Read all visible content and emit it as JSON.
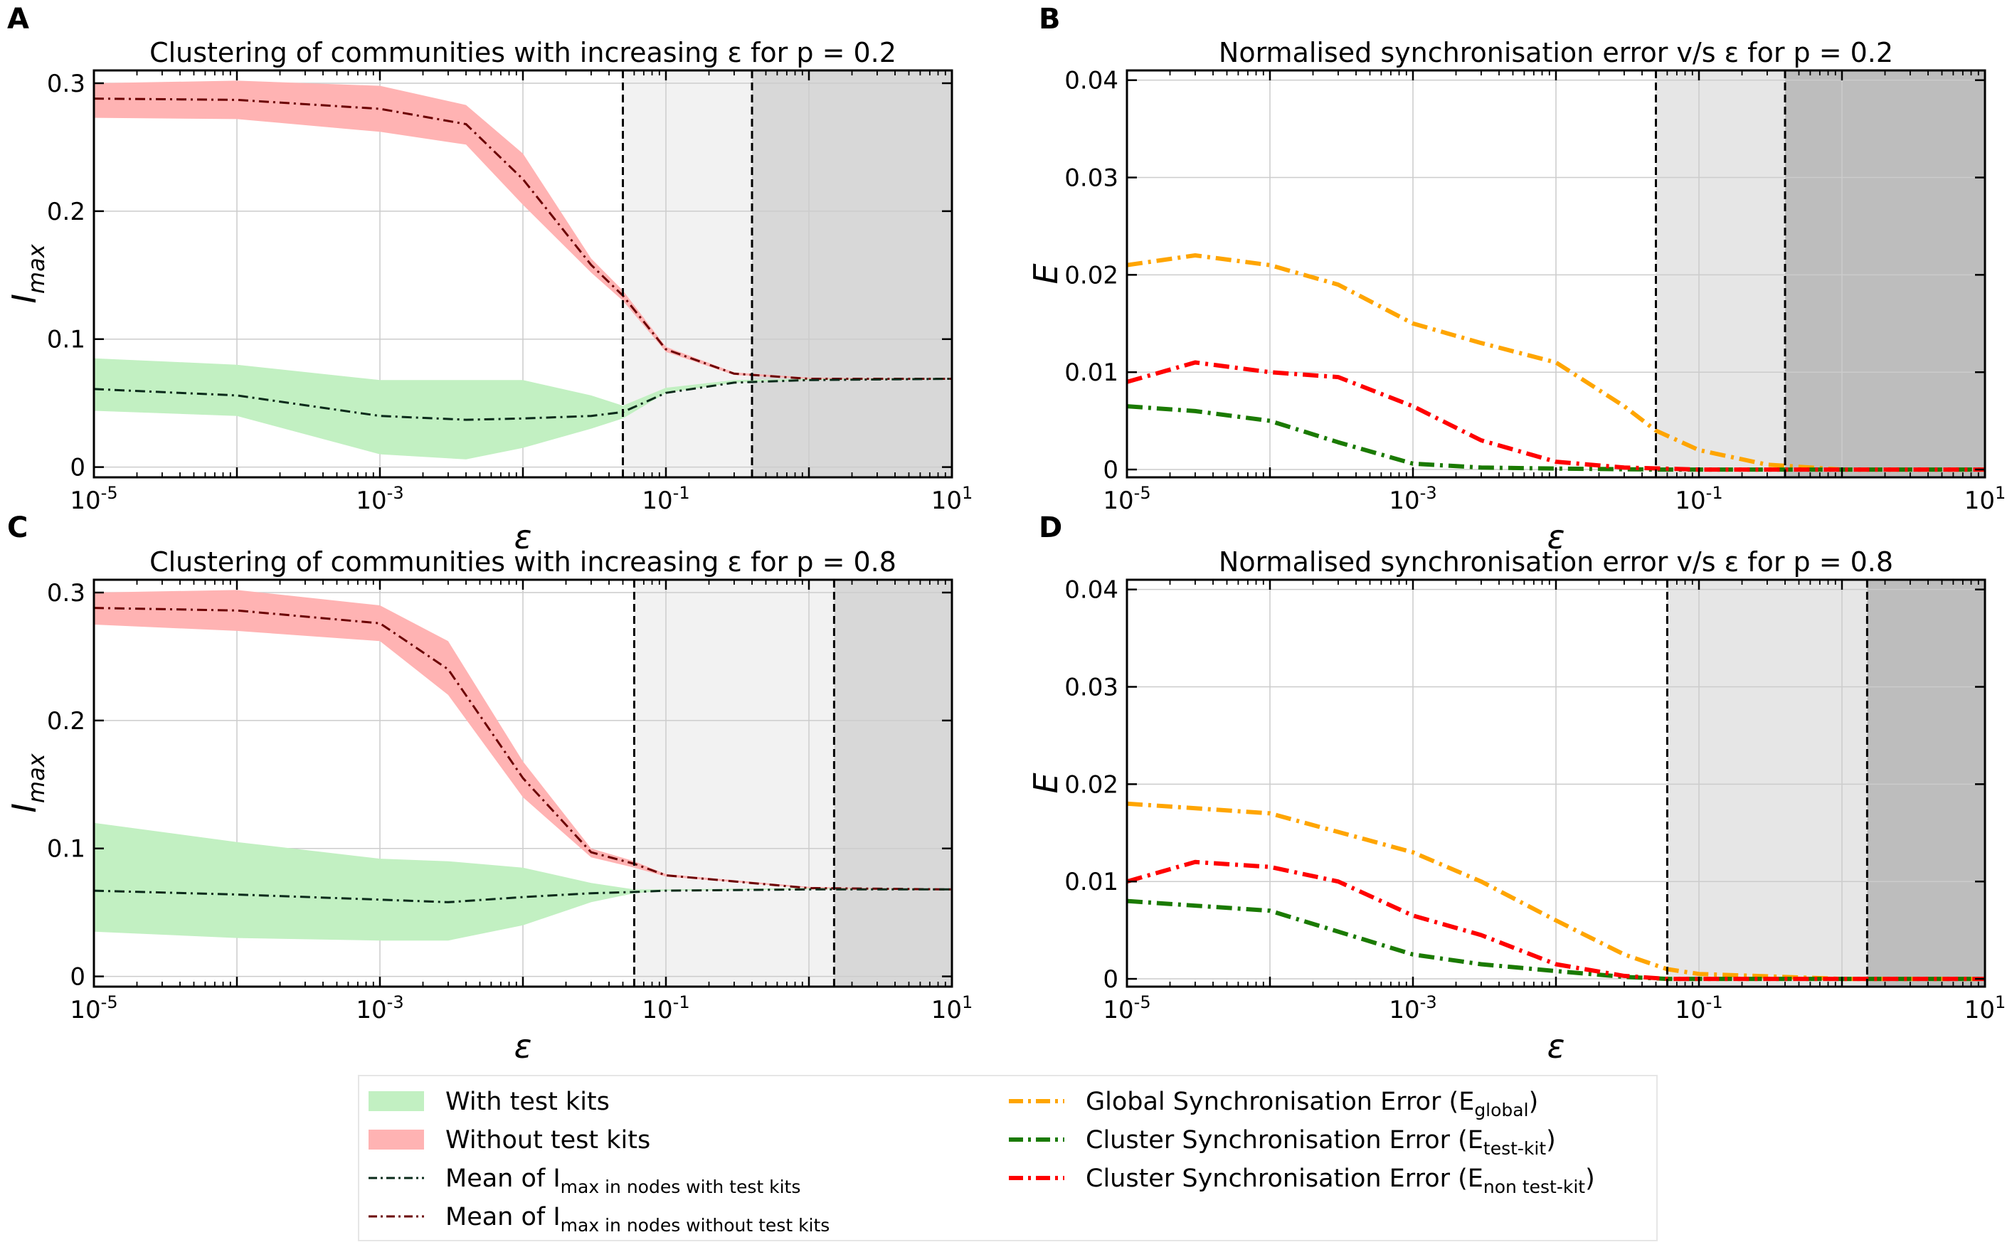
{
  "chart_data": [
    {
      "panel": "A",
      "type": "line",
      "title": "Clustering of communities with increasing ε for p = 0.2",
      "xlabel": "ε",
      "ylabel": "I_max",
      "x_scale": "log",
      "xlim": [
        1e-05,
        10
      ],
      "ylim": [
        -0.008,
        0.31
      ],
      "x_ticks": [
        "10^-5",
        "10^-3",
        "10^-1",
        "10^1"
      ],
      "y_ticks": [
        "0",
        "0.1",
        "0.2",
        "0.3"
      ],
      "grid": true,
      "vlines": [
        0.05,
        0.4
      ],
      "regions": [
        {
          "from": 0.05,
          "to": 0.4,
          "color": "#f2f2f2"
        },
        {
          "from": 0.4,
          "to": 10,
          "color": "#d8d8d8"
        }
      ],
      "series": [
        {
          "name": "Without test kits",
          "kind": "band",
          "color": "#ffb3b3",
          "x": [
            1e-05,
            0.0001,
            0.001,
            0.004,
            0.01,
            0.03,
            0.05,
            0.1,
            0.3,
            1,
            10
          ],
          "low": [
            0.273,
            0.272,
            0.262,
            0.252,
            0.205,
            0.152,
            0.13,
            0.09,
            0.072,
            0.069,
            0.069
          ],
          "high": [
            0.3,
            0.302,
            0.298,
            0.283,
            0.245,
            0.163,
            0.138,
            0.094,
            0.074,
            0.07,
            0.069
          ]
        },
        {
          "name": "With test kits",
          "kind": "band",
          "color": "#c2f0c2",
          "x": [
            1e-05,
            0.0001,
            0.001,
            0.004,
            0.01,
            0.03,
            0.05,
            0.1,
            0.3,
            1,
            10
          ],
          "low": [
            0.044,
            0.04,
            0.01,
            0.006,
            0.015,
            0.03,
            0.038,
            0.058,
            0.066,
            0.068,
            0.069
          ],
          "high": [
            0.085,
            0.08,
            0.068,
            0.068,
            0.068,
            0.056,
            0.048,
            0.062,
            0.068,
            0.069,
            0.069
          ]
        },
        {
          "name": "Mean of I_max in nodes without test kits",
          "kind": "line",
          "color": "#6b0000",
          "x": [
            1e-05,
            0.0001,
            0.001,
            0.004,
            0.01,
            0.03,
            0.05,
            0.1,
            0.3,
            1,
            10
          ],
          "y": [
            0.288,
            0.287,
            0.28,
            0.268,
            0.225,
            0.158,
            0.134,
            0.092,
            0.073,
            0.069,
            0.069
          ]
        },
        {
          "name": "Mean of I_max in nodes with test kits",
          "kind": "line",
          "color": "#0a2a1a",
          "x": [
            1e-05,
            0.0001,
            0.001,
            0.004,
            0.01,
            0.03,
            0.05,
            0.1,
            0.3,
            1,
            10
          ],
          "y": [
            0.061,
            0.056,
            0.04,
            0.037,
            0.038,
            0.04,
            0.043,
            0.058,
            0.066,
            0.068,
            0.069
          ]
        }
      ]
    },
    {
      "panel": "B",
      "type": "line",
      "title": "Normalised synchronisation error v/s ε for p = 0.2",
      "xlabel": "ε",
      "ylabel": "E",
      "x_scale": "log",
      "xlim": [
        1e-05,
        10
      ],
      "ylim": [
        -0.0008,
        0.041
      ],
      "x_ticks": [
        "10^-5",
        "10^-3",
        "10^-1",
        "10^1"
      ],
      "y_ticks": [
        "0",
        "0.01",
        "0.02",
        "0.03",
        "0.04"
      ],
      "grid": true,
      "vlines": [
        0.05,
        0.4
      ],
      "regions": [
        {
          "from": 0.05,
          "to": 0.4,
          "color": "#e6e6e6"
        },
        {
          "from": 0.4,
          "to": 10,
          "color": "#bdbdbd"
        }
      ],
      "series": [
        {
          "name": "Global Synchronisation Error (E_global)",
          "kind": "line",
          "color": "#ffa500",
          "x": [
            1e-05,
            3e-05,
            0.0001,
            0.0003,
            0.001,
            0.003,
            0.01,
            0.03,
            0.05,
            0.1,
            0.3,
            1,
            10
          ],
          "y": [
            0.021,
            0.022,
            0.021,
            0.019,
            0.015,
            0.013,
            0.011,
            0.0065,
            0.004,
            0.002,
            0.0005,
            0.0,
            0.0
          ]
        },
        {
          "name": "Cluster Synchronisation Error (E_test-kit)",
          "kind": "line",
          "color": "#1a7a00",
          "x": [
            1e-05,
            3e-05,
            0.0001,
            0.0003,
            0.001,
            0.003,
            0.01,
            0.05,
            0.3,
            10
          ],
          "y": [
            0.0065,
            0.006,
            0.005,
            0.0028,
            0.0006,
            0.0002,
            0.0001,
            0.0,
            0.0,
            0.0
          ]
        },
        {
          "name": "Cluster Synchronisation Error (E_non test-kit)",
          "kind": "line",
          "color": "#ff0000",
          "x": [
            1e-05,
            3e-05,
            0.0001,
            0.0003,
            0.001,
            0.003,
            0.01,
            0.03,
            0.1,
            10
          ],
          "y": [
            0.009,
            0.011,
            0.01,
            0.0095,
            0.0065,
            0.003,
            0.0008,
            0.0002,
            0.0,
            0.0
          ]
        }
      ]
    },
    {
      "panel": "C",
      "type": "line",
      "title": "Clustering of communities with increasing ε for p = 0.8",
      "xlabel": "ε",
      "ylabel": "I_max",
      "x_scale": "log",
      "xlim": [
        1e-05,
        10
      ],
      "ylim": [
        -0.008,
        0.31
      ],
      "x_ticks": [
        "10^-5",
        "10^-3",
        "10^-1",
        "10^1"
      ],
      "y_ticks": [
        "0",
        "0.1",
        "0.2",
        "0.3"
      ],
      "grid": true,
      "vlines": [
        0.06,
        1.5
      ],
      "regions": [
        {
          "from": 0.06,
          "to": 1.5,
          "color": "#f2f2f2"
        },
        {
          "from": 1.5,
          "to": 10,
          "color": "#d8d8d8"
        }
      ],
      "series": [
        {
          "name": "Without test kits",
          "kind": "band",
          "color": "#ffb3b3",
          "x": [
            1e-05,
            0.0001,
            0.001,
            0.003,
            0.01,
            0.03,
            0.06,
            0.1,
            1,
            10
          ],
          "low": [
            0.275,
            0.27,
            0.262,
            0.22,
            0.14,
            0.093,
            0.085,
            0.078,
            0.069,
            0.068
          ],
          "high": [
            0.3,
            0.302,
            0.29,
            0.262,
            0.168,
            0.1,
            0.09,
            0.08,
            0.07,
            0.068
          ]
        },
        {
          "name": "With test kits",
          "kind": "band",
          "color": "#c2f0c2",
          "x": [
            1e-05,
            0.0001,
            0.001,
            0.003,
            0.01,
            0.03,
            0.06,
            0.1,
            1,
            10
          ],
          "low": [
            0.035,
            0.03,
            0.028,
            0.028,
            0.04,
            0.058,
            0.065,
            0.067,
            0.068,
            0.068
          ],
          "high": [
            0.12,
            0.105,
            0.092,
            0.09,
            0.085,
            0.073,
            0.068,
            0.068,
            0.069,
            0.068
          ]
        },
        {
          "name": "Mean of I_max in nodes without test kits",
          "kind": "line",
          "color": "#6b0000",
          "x": [
            1e-05,
            0.0001,
            0.001,
            0.003,
            0.01,
            0.03,
            0.06,
            0.1,
            1,
            10
          ],
          "y": [
            0.288,
            0.286,
            0.276,
            0.24,
            0.155,
            0.097,
            0.088,
            0.079,
            0.069,
            0.068
          ]
        },
        {
          "name": "Mean of I_max in nodes with test kits",
          "kind": "line",
          "color": "#0a2a1a",
          "x": [
            1e-05,
            0.0001,
            0.001,
            0.003,
            0.01,
            0.03,
            0.06,
            0.1,
            1,
            10
          ],
          "y": [
            0.067,
            0.064,
            0.06,
            0.058,
            0.062,
            0.065,
            0.066,
            0.067,
            0.068,
            0.068
          ]
        }
      ]
    },
    {
      "panel": "D",
      "type": "line",
      "title": "Normalised synchronisation error v/s ε for p = 0.8",
      "xlabel": "ε",
      "ylabel": "E",
      "x_scale": "log",
      "xlim": [
        1e-05,
        10
      ],
      "ylim": [
        -0.0008,
        0.041
      ],
      "x_ticks": [
        "10^-5",
        "10^-3",
        "10^-1",
        "10^1"
      ],
      "y_ticks": [
        "0",
        "0.01",
        "0.02",
        "0.03",
        "0.04"
      ],
      "grid": true,
      "vlines": [
        0.06,
        1.5
      ],
      "regions": [
        {
          "from": 0.06,
          "to": 1.5,
          "color": "#e6e6e6"
        },
        {
          "from": 1.5,
          "to": 10,
          "color": "#bdbdbd"
        }
      ],
      "series": [
        {
          "name": "Global Synchronisation Error (E_global)",
          "kind": "line",
          "color": "#ffa500",
          "x": [
            1e-05,
            0.0001,
            0.001,
            0.003,
            0.01,
            0.03,
            0.06,
            0.1,
            1,
            10
          ],
          "y": [
            0.018,
            0.017,
            0.013,
            0.01,
            0.006,
            0.0025,
            0.001,
            0.0005,
            0.0,
            0.0
          ]
        },
        {
          "name": "Cluster Synchronisation Error (E_test-kit)",
          "kind": "line",
          "color": "#1a7a00",
          "x": [
            1e-05,
            0.0001,
            0.001,
            0.003,
            0.01,
            0.03,
            0.06,
            1,
            10
          ],
          "y": [
            0.008,
            0.007,
            0.0025,
            0.0015,
            0.0008,
            0.0002,
            0.0,
            0.0,
            0.0
          ]
        },
        {
          "name": "Cluster Synchronisation Error (E_non test-kit)",
          "kind": "line",
          "color": "#ff0000",
          "x": [
            1e-05,
            3e-05,
            0.0001,
            0.0003,
            0.001,
            0.003,
            0.01,
            0.03,
            0.06,
            10
          ],
          "y": [
            0.01,
            0.012,
            0.0115,
            0.01,
            0.0065,
            0.0045,
            0.0015,
            0.0003,
            0.0,
            0.0
          ]
        }
      ]
    }
  ],
  "panel_letters": [
    "A",
    "B",
    "C",
    "D"
  ],
  "legend": {
    "placement": "bottom-center",
    "items": [
      {
        "label": "With test kits",
        "kind": "patch",
        "color": "#c2f0c2"
      },
      {
        "label": "Without test kits",
        "kind": "patch",
        "color": "#ffb3b3"
      },
      {
        "label": "Mean of I_max in nodes with test kits",
        "kind": "line",
        "color": "#0a2a1a"
      },
      {
        "label": "Mean of I_max in nodes without test kits",
        "kind": "line",
        "color": "#6b0000"
      },
      {
        "label": "Global Synchronisation Error (E_global)",
        "kind": "line",
        "color": "#ffa500"
      },
      {
        "label": "Cluster Synchronisation Error (E_test-kit)",
        "kind": "line",
        "color": "#1a7a00"
      },
      {
        "label": "Cluster Synchronisation Error (E_non test-kit)",
        "kind": "line",
        "color": "#ff0000"
      }
    ]
  }
}
